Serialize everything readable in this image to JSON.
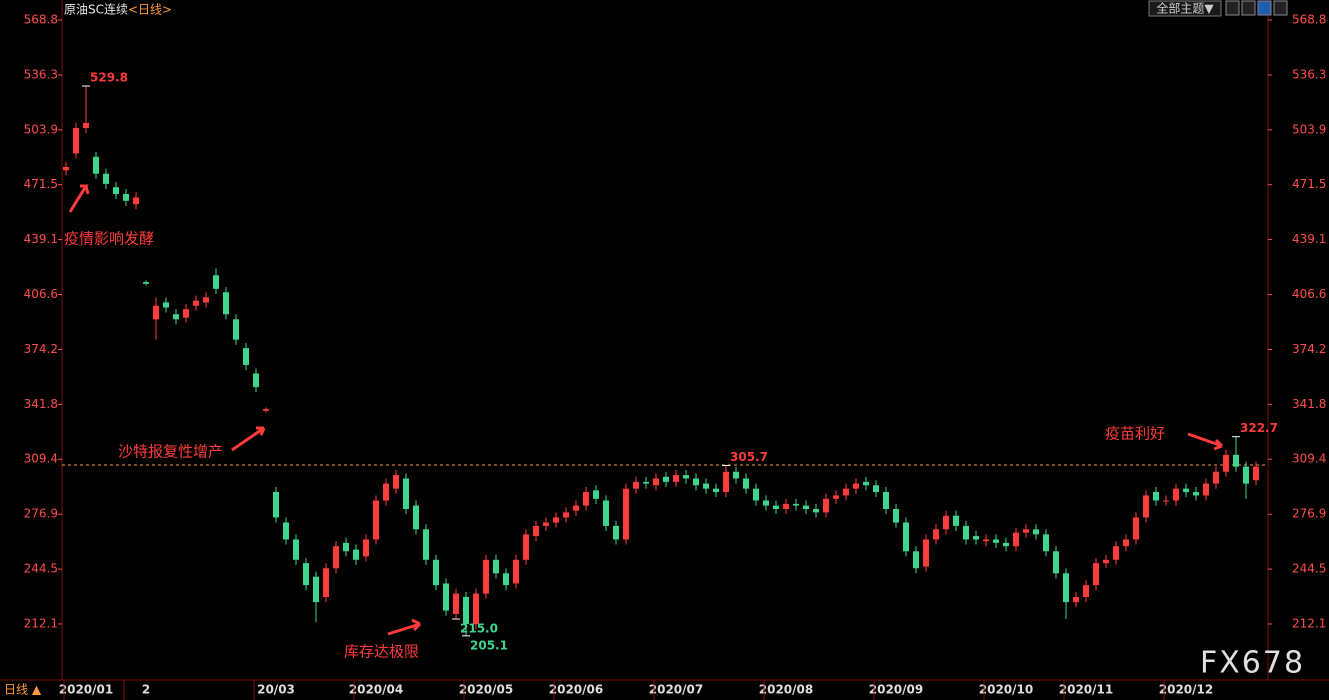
{
  "header": {
    "symbol": "原油SC连续",
    "period": "<日线>",
    "theme_button": "全部主题▼"
  },
  "footer": {
    "period_button": "日线 ▲",
    "watermark": "FX678"
  },
  "chart_data": {
    "type": "candlestick",
    "up_color": "#ff3c3c",
    "down_color": "#3ed68f",
    "axis_color": "#ff4d4d",
    "ylim": [
      179,
      573.5
    ],
    "yticks": [
      568.8,
      536.3,
      503.9,
      471.5,
      439.1,
      406.6,
      374.2,
      341.8,
      309.4,
      276.9,
      244.5,
      212.1
    ],
    "hline": 306,
    "categories": [
      null,
      null,
      "2020/01",
      null,
      null,
      null,
      null,
      null,
      "2",
      null,
      null,
      null,
      null,
      null,
      null,
      null,
      null,
      null,
      null,
      null,
      null,
      "20/03",
      null,
      null,
      null,
      null,
      null,
      null,
      null,
      null,
      null,
      "2020/04",
      null,
      null,
      null,
      null,
      null,
      null,
      null,
      null,
      null,
      null,
      "2020/05",
      null,
      null,
      null,
      null,
      null,
      null,
      null,
      null,
      "2020/06",
      null,
      null,
      null,
      null,
      null,
      null,
      null,
      null,
      null,
      "2020/07",
      null,
      null,
      null,
      null,
      null,
      null,
      null,
      null,
      null,
      null,
      "2020/08",
      null,
      null,
      null,
      null,
      null,
      null,
      null,
      null,
      null,
      null,
      "2020/09",
      null,
      null,
      null,
      null,
      null,
      null,
      null,
      null,
      null,
      null,
      "2020/10",
      null,
      null,
      null,
      null,
      null,
      null,
      null,
      "2020/11",
      null,
      null,
      null,
      null,
      null,
      null,
      null,
      null,
      null,
      "2020/12",
      null,
      null,
      null,
      null,
      null,
      null,
      null
    ],
    "open": [
      480,
      490,
      505,
      488,
      478,
      470,
      466,
      460,
      414,
      392,
      402,
      395,
      393,
      400,
      402,
      418,
      408,
      392,
      375,
      360,
      338,
      290,
      272,
      262,
      248,
      240,
      228,
      245,
      260,
      256,
      252,
      262,
      285,
      292,
      298,
      282,
      268,
      250,
      236,
      218,
      228,
      212,
      230,
      250,
      242,
      236,
      250,
      264,
      270,
      272,
      275,
      279,
      282,
      291,
      285,
      270,
      262,
      292,
      296,
      294,
      299,
      296,
      300,
      298,
      295,
      292,
      290,
      302,
      298,
      292,
      285,
      282,
      280,
      283,
      282,
      280,
      278,
      286,
      288,
      292,
      296,
      294,
      290,
      280,
      272,
      255,
      246,
      262,
      268,
      276,
      270,
      264,
      261,
      262,
      260,
      258,
      266,
      268,
      265,
      255,
      242,
      225,
      228,
      235,
      248,
      250,
      258,
      262,
      275,
      290,
      285,
      285,
      292,
      290,
      288,
      295,
      302,
      312,
      305,
      297
    ],
    "high": [
      485,
      508,
      529.8,
      491,
      481,
      473,
      469,
      467,
      415,
      405,
      405,
      398,
      401,
      406,
      408,
      422,
      411,
      395,
      378,
      363,
      340,
      293,
      275,
      265,
      251,
      243,
      248,
      261,
      263,
      259,
      265,
      288,
      298,
      303,
      301,
      285,
      271,
      253,
      239,
      233,
      231,
      233,
      253,
      253,
      245,
      253,
      268,
      273,
      275,
      278,
      281,
      285,
      293,
      294,
      288,
      273,
      295,
      299,
      299,
      301,
      302,
      303,
      303,
      301,
      298,
      295,
      305.7,
      305,
      301,
      295,
      288,
      285,
      286,
      286,
      285,
      283,
      289,
      291,
      295,
      298,
      299,
      297,
      293,
      283,
      275,
      258,
      265,
      271,
      279,
      279,
      273,
      267,
      265,
      265,
      263,
      269,
      271,
      271,
      268,
      258,
      245,
      231,
      238,
      251,
      253,
      261,
      265,
      278,
      291,
      293,
      288,
      295,
      295,
      293,
      298,
      305,
      315,
      322.7,
      308,
      308
    ],
    "low": [
      477,
      487,
      502,
      475,
      469,
      463,
      459,
      457,
      412,
      380,
      396,
      389,
      390,
      397,
      399,
      407,
      392,
      377,
      362,
      349,
      337,
      272,
      259,
      247,
      232,
      213,
      225,
      242,
      252,
      247,
      249,
      259,
      282,
      289,
      277,
      265,
      247,
      232,
      217,
      215,
      205.1,
      209,
      227,
      239,
      232,
      233,
      247,
      261,
      267,
      269,
      272,
      276,
      279,
      283,
      267,
      259,
      259,
      289,
      292,
      291,
      293,
      293,
      295,
      291,
      289,
      287,
      287,
      295,
      289,
      282,
      279,
      277,
      277,
      279,
      277,
      275,
      275,
      283,
      285,
      289,
      291,
      287,
      277,
      269,
      252,
      242,
      243,
      259,
      265,
      267,
      259,
      259,
      258,
      257,
      255,
      255,
      263,
      262,
      252,
      239,
      215,
      222,
      225,
      232,
      245,
      247,
      255,
      259,
      272,
      282,
      282,
      282,
      287,
      285,
      285,
      292,
      299,
      302,
      286,
      294
    ],
    "close": [
      482,
      505,
      508,
      478,
      472,
      466,
      462,
      464,
      413,
      400,
      399,
      392,
      398,
      403,
      405,
      410,
      395,
      380,
      365,
      352,
      339,
      275,
      262,
      250,
      235,
      225,
      245,
      258,
      255,
      250,
      262,
      285,
      295,
      300,
      280,
      268,
      250,
      235,
      220,
      230,
      212,
      230,
      250,
      242,
      235,
      250,
      265,
      270,
      272,
      275,
      278,
      282,
      290,
      286,
      270,
      262,
      292,
      296,
      295,
      298,
      296,
      300,
      298,
      294,
      292,
      290,
      302,
      298,
      292,
      285,
      282,
      280,
      283,
      282,
      280,
      278,
      286,
      288,
      292,
      295,
      294,
      290,
      280,
      272,
      255,
      245,
      262,
      268,
      276,
      270,
      262,
      262,
      262,
      260,
      258,
      266,
      268,
      265,
      255,
      242,
      225,
      228,
      235,
      248,
      250,
      258,
      262,
      275,
      288,
      285,
      285,
      292,
      290,
      288,
      295,
      302,
      312,
      305,
      295,
      305
    ],
    "extreme_labels": [
      {
        "value": 529.8,
        "label": "529.8"
      },
      {
        "value": 205.1,
        "label": "205.1"
      },
      {
        "value": 305.7,
        "label": "305.7"
      },
      {
        "value": 215,
        "label": "215.0"
      },
      {
        "value": 322.7,
        "label": "322.7"
      }
    ],
    "annotations": [
      "疫情影响发酵",
      "沙特报复性增产",
      "库存达极限",
      "疫苗利好"
    ]
  }
}
